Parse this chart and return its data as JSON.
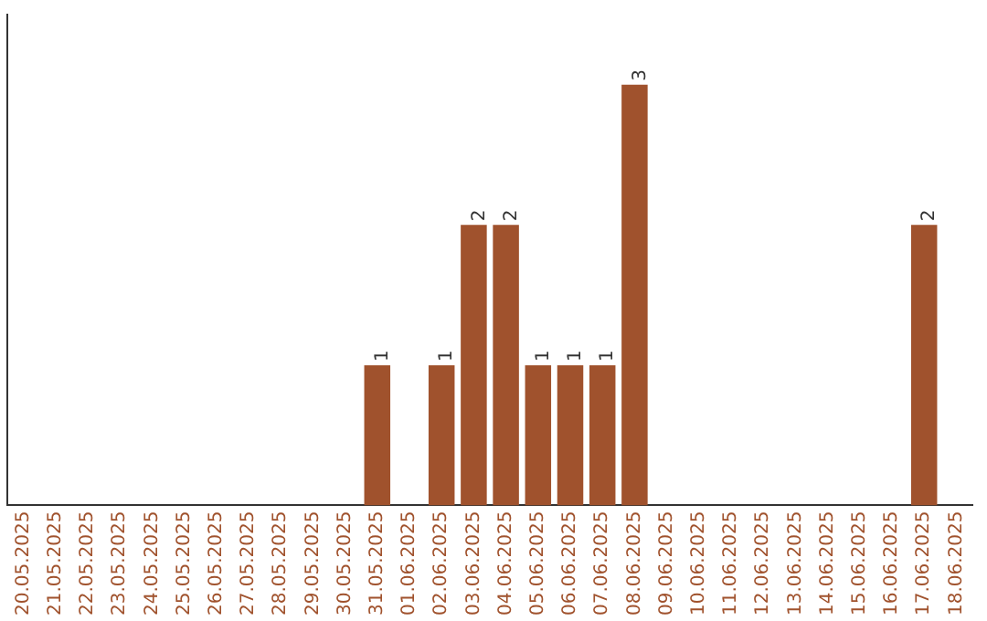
{
  "chart_data": {
    "type": "bar",
    "categories": [
      "20.05.2025",
      "21.05.2025",
      "22.05.2025",
      "23.05.2025",
      "24.05.2025",
      "25.05.2025",
      "26.05.2025",
      "27.05.2025",
      "28.05.2025",
      "29.05.2025",
      "30.05.2025",
      "31.05.2025",
      "01.06.2025",
      "02.06.2025",
      "03.06.2025",
      "04.06.2025",
      "05.06.2025",
      "06.06.2025",
      "07.06.2025",
      "08.06.2025",
      "09.06.2025",
      "10.06.2025",
      "11.06.2025",
      "12.06.2025",
      "13.06.2025",
      "14.06.2025",
      "15.06.2025",
      "16.06.2025",
      "17.06.2025",
      "18.06.2025"
    ],
    "values": [
      0,
      0,
      0,
      0,
      0,
      0,
      0,
      0,
      0,
      0,
      0,
      1,
      0,
      1,
      2,
      2,
      1,
      1,
      1,
      3,
      0,
      0,
      0,
      0,
      0,
      0,
      0,
      0,
      2,
      0
    ],
    "value_labels": [
      null,
      null,
      null,
      null,
      null,
      null,
      null,
      null,
      null,
      null,
      null,
      "1",
      null,
      "1",
      "2",
      "2",
      "1",
      "1",
      "1",
      "3",
      null,
      null,
      null,
      null,
      null,
      null,
      null,
      null,
      "2",
      null
    ],
    "color": "#a0522d",
    "grid": false,
    "legend": false,
    "tick_labels": "x"
  }
}
